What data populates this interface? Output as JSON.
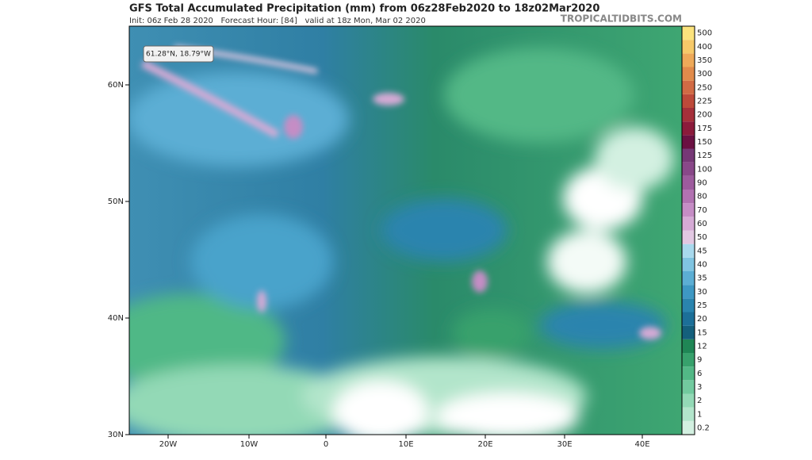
{
  "header": {
    "title": "GFS Total Accumulated Precipitation (mm) from 06z28Feb2020 to 18z02Mar2020",
    "subtitle": "Init: 06z Feb 28 2020   Forecast Hour: [84]   valid at 18z Mon, Mar 02 2020",
    "brand": "TROPICALTIDBITS.COM"
  },
  "map": {
    "tooltip": "61.28°N, 18.79°W",
    "latitude_labels": [
      "60N",
      "50N",
      "40N",
      "30N"
    ],
    "longitude_labels": [
      "20W",
      "10W",
      "0",
      "10E",
      "20E",
      "30E",
      "40E"
    ]
  },
  "colorbar": {
    "levels": [
      {
        "label": "0.2",
        "color": "#d3f0e1"
      },
      {
        "label": "1",
        "color": "#b2e5cb"
      },
      {
        "label": "2",
        "color": "#93d9b6"
      },
      {
        "label": "3",
        "color": "#72ca9f"
      },
      {
        "label": "6",
        "color": "#52b886"
      },
      {
        "label": "9",
        "color": "#37a16c"
      },
      {
        "label": "12",
        "color": "#1f8655"
      },
      {
        "label": "15",
        "color": "#145f7c"
      },
      {
        "label": "20",
        "color": "#1c6f98"
      },
      {
        "label": "25",
        "color": "#2a84ae"
      },
      {
        "label": "30",
        "color": "#3e98c3"
      },
      {
        "label": "35",
        "color": "#5caed4"
      },
      {
        "label": "40",
        "color": "#80c4e1"
      },
      {
        "label": "45",
        "color": "#a8d9ed"
      },
      {
        "label": "50",
        "color": "#e2c8e2"
      },
      {
        "label": "60",
        "color": "#d5aad5"
      },
      {
        "label": "70",
        "color": "#c58dc5"
      },
      {
        "label": "80",
        "color": "#b172b1"
      },
      {
        "label": "90",
        "color": "#9d5b9d"
      },
      {
        "label": "100",
        "color": "#894889"
      },
      {
        "label": "125",
        "color": "#763876"
      },
      {
        "label": "150",
        "color": "#6b1142"
      },
      {
        "label": "175",
        "color": "#8b1b3b"
      },
      {
        "label": "200",
        "color": "#a5303a"
      },
      {
        "label": "225",
        "color": "#bd4a3a"
      },
      {
        "label": "250",
        "color": "#d16b45"
      },
      {
        "label": "300",
        "color": "#e18b4b"
      },
      {
        "label": "350",
        "color": "#eea959"
      },
      {
        "label": "400",
        "color": "#f6c969"
      },
      {
        "label": "500",
        "color": "#fbe37d"
      }
    ]
  }
}
